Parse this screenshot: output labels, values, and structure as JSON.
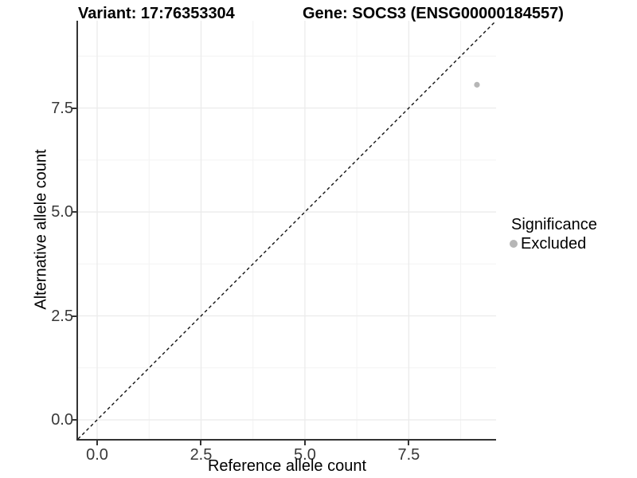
{
  "header": {
    "variant_title": "Variant: 17:76353304",
    "gene_title": "Gene: SOCS3 (ENSG00000184557)"
  },
  "chart_data": {
    "type": "scatter",
    "title": "Variant: 17:76353304 / Gene: SOCS3 (ENSG00000184557)",
    "xlabel": "Reference allele count",
    "ylabel": "Alternative allele count",
    "xlim": [
      -0.46,
      9.6
    ],
    "ylim": [
      -0.46,
      9.6
    ],
    "x_major_ticks": [
      0,
      2.5,
      5,
      7.5
    ],
    "x_tick_labels": [
      "0.0",
      "2.5",
      "5.0",
      "7.5"
    ],
    "y_major_ticks": [
      0,
      2.5,
      5,
      7.5
    ],
    "y_tick_labels": [
      "0.0",
      "2.5",
      "5.0",
      "7.5"
    ],
    "minor_ticks": [
      1.25,
      3.75,
      6.25,
      8.75
    ],
    "grid": "major and minor gridlines, light grey on white panel",
    "identity_line": {
      "slope": 1,
      "intercept": 0,
      "style": "dashed",
      "color": "#111111"
    },
    "series": [
      {
        "name": "Excluded",
        "marker": "circle",
        "color": "#b6b6b6",
        "points": [
          {
            "x": 9.14,
            "y": 8.06
          }
        ]
      }
    ],
    "legend": {
      "title": "Significance",
      "position": "right",
      "entries": [
        {
          "label": "Excluded",
          "color": "#b6b6b6",
          "marker": "circle"
        }
      ]
    }
  },
  "colors": {
    "background": "#ffffff",
    "axis_line": "#333333",
    "tick_label": "#383838",
    "grid_major": "#ebebeb",
    "grid_minor": "#f3f3f3",
    "point": "#b6b6b6",
    "identity_line": "#111111"
  }
}
